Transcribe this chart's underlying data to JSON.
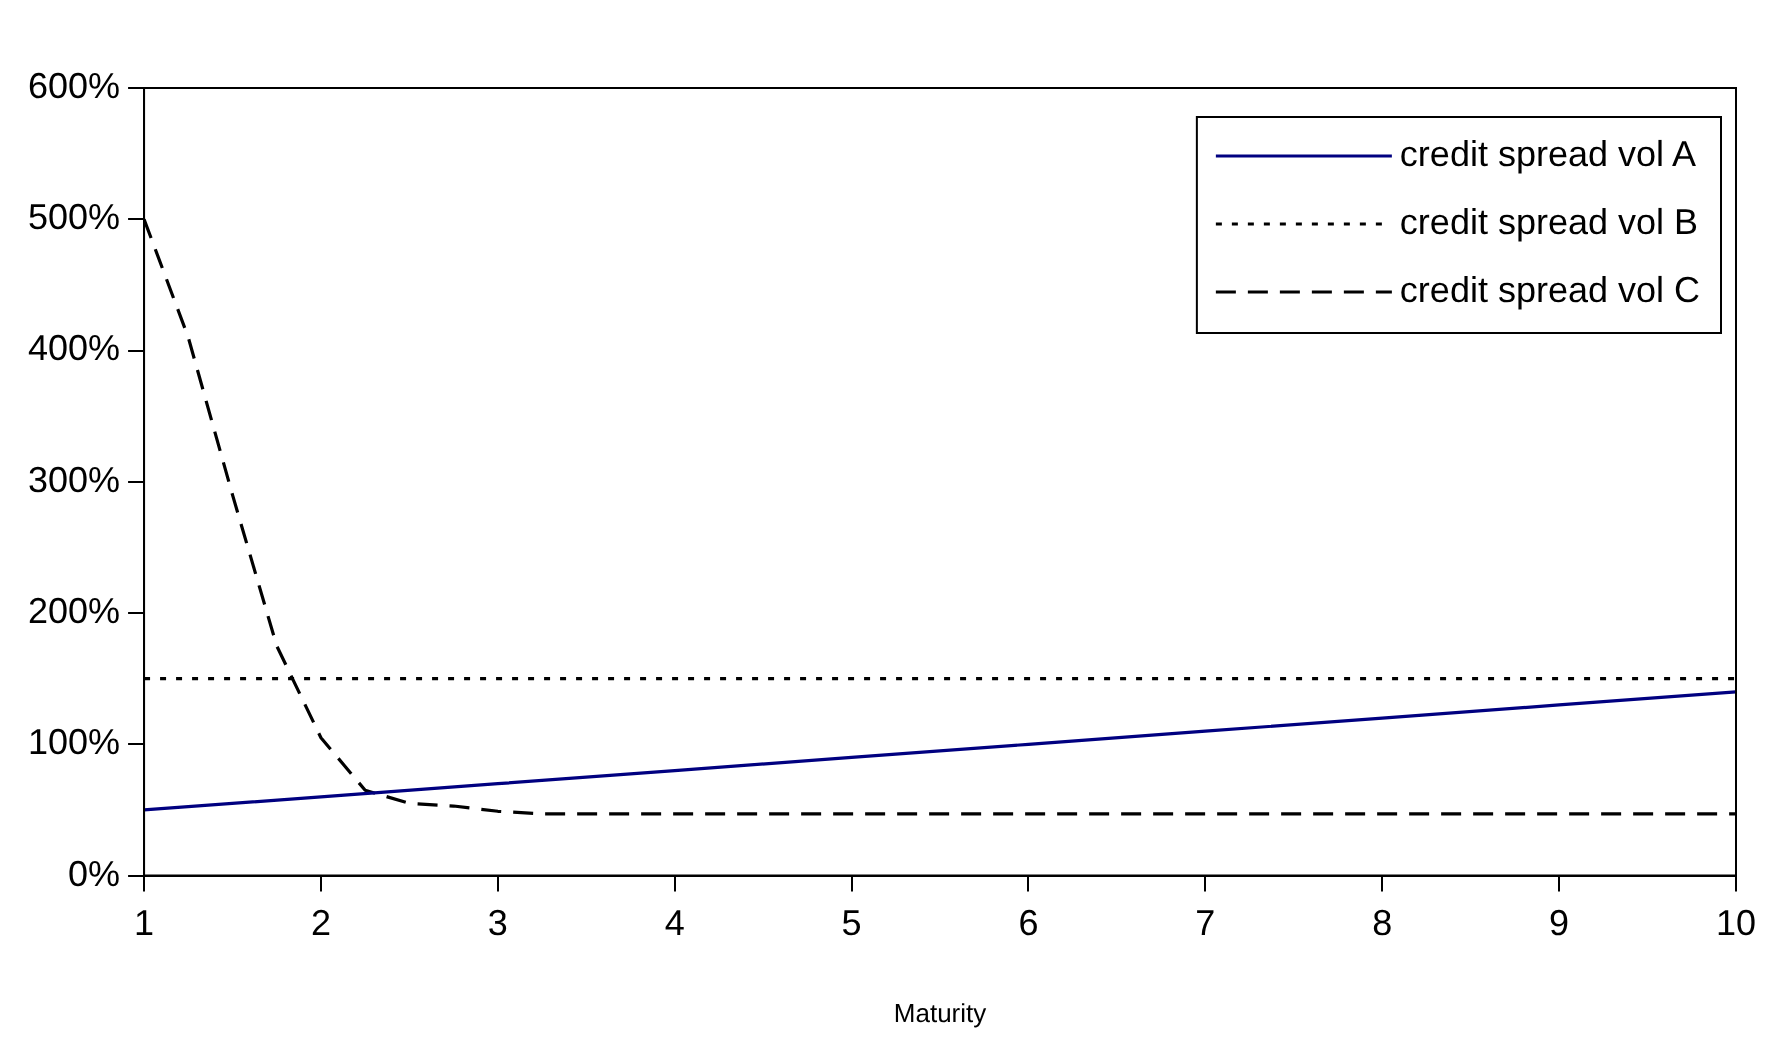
{
  "chart_data": {
    "type": "line",
    "xlabel": "Maturity",
    "xlim": [
      1,
      10
    ],
    "xticks": [
      1,
      2,
      3,
      4,
      5,
      6,
      7,
      8,
      9,
      10
    ],
    "ylim": [
      0,
      600
    ],
    "yticks": [
      {
        "value": 0,
        "label": "0%"
      },
      {
        "value": 100,
        "label": "100%"
      },
      {
        "value": 200,
        "label": "200%"
      },
      {
        "value": 300,
        "label": "300%"
      },
      {
        "value": 400,
        "label": "400%"
      },
      {
        "value": 500,
        "label": "500%"
      },
      {
        "value": 600,
        "label": "600%"
      }
    ],
    "grid": false,
    "legend": "top right",
    "marker": "none",
    "series": [
      {
        "name": "credit spread vol A",
        "color": "#000080",
        "line_style": "solid",
        "x": [
          1,
          2,
          3,
          4,
          5,
          6,
          7,
          8,
          9,
          10
        ],
        "values": [
          50,
          60,
          70,
          80,
          90,
          100,
          110,
          120,
          130,
          140
        ]
      },
      {
        "name": "credit spread vol B",
        "color": "#000000",
        "line_style": "dotted",
        "x": [
          1,
          10
        ],
        "values": [
          150,
          150
        ]
      },
      {
        "name": "credit spread vol C",
        "color": "#000000",
        "line_style": "dashed",
        "x": [
          1,
          1.25,
          1.5,
          1.75,
          2,
          2.25,
          2.5,
          2.75,
          3,
          3.25,
          10
        ],
        "values": [
          500,
          410,
          290,
          175,
          105,
          65,
          55,
          53,
          49,
          47,
          47
        ]
      }
    ]
  }
}
